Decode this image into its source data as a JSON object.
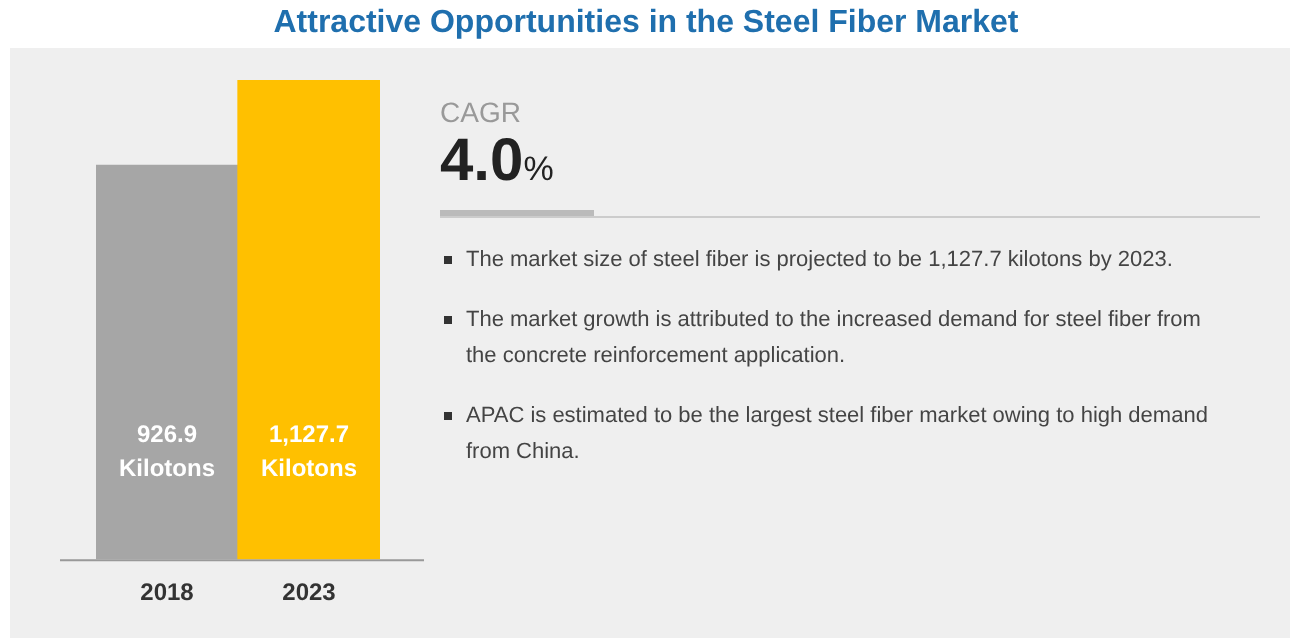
{
  "chart_data": [
    {
      "type": "bar",
      "title": "Attractive Opportunities in the Steel Fiber Market",
      "categories": [
        "2018",
        "2023"
      ],
      "values": [
        926.9,
        1127.7
      ],
      "colors": [
        "#a6a6a6",
        "#ffc000"
      ],
      "value_labels": [
        "926.9 Kilotons",
        "1,127.7 Kilotons"
      ],
      "legend": false,
      "grid": false
    },
    {
      "type": "other",
      "title": "CAGR",
      "subtitle": "4.0%",
      "annotations": [
        "The market size of steel fiber is projected to be 1,127.7 kilotons by 2023.",
        "The market growth is attributed to the increased demand for steel fiber from the concrete reinforcement application.",
        "APAC is estimated to be the largest steel fiber market owing to high demand from China."
      ]
    }
  ]
}
